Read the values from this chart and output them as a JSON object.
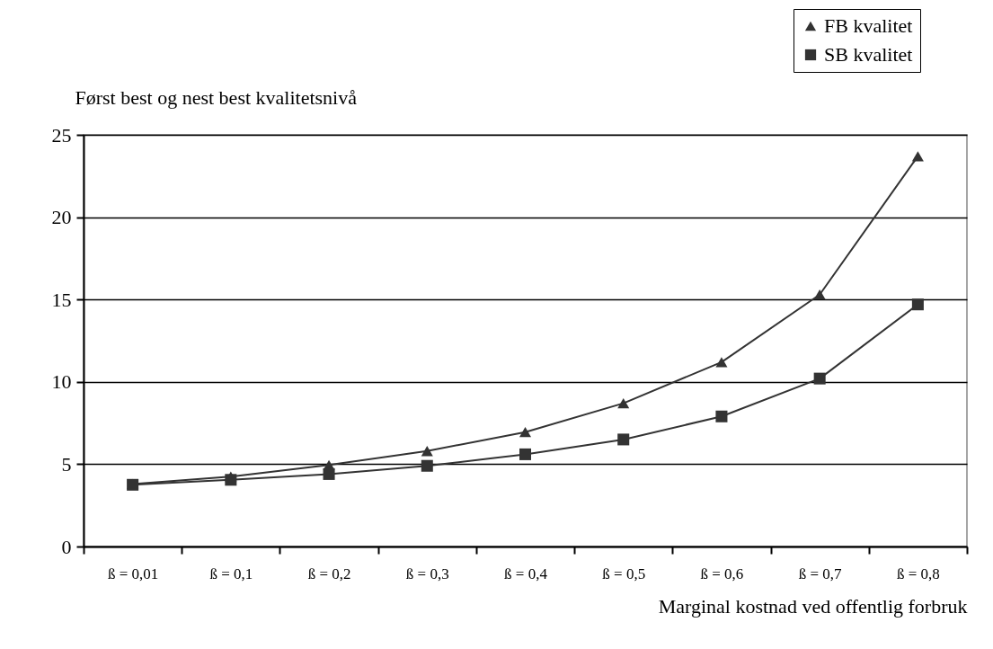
{
  "chart_data": {
    "type": "line",
    "ylabel": "Først best og nest best kvalitetsnivå",
    "xlabel": "Marginal kostnad ved offentlig forbruk",
    "categories": [
      "ß = 0,01",
      "ß = 0,1",
      "ß = 0,2",
      "ß = 0,3",
      "ß = 0,4",
      "ß = 0,5",
      "ß = 0,6",
      "ß = 0,7",
      "ß = 0,8"
    ],
    "series": [
      {
        "name": "FB kvalitet",
        "color": "#333333",
        "marker": "triangle",
        "values": [
          3.8,
          4.25,
          4.95,
          5.8,
          6.95,
          8.7,
          11.2,
          15.3,
          23.7
        ]
      },
      {
        "name": "SB kvalitet",
        "color": "#333333",
        "marker": "square",
        "values": [
          3.75,
          4.05,
          4.4,
          4.9,
          5.6,
          6.5,
          7.9,
          10.2,
          14.7
        ]
      }
    ],
    "ylim": [
      0,
      25
    ],
    "yticks": [
      0,
      5,
      10,
      15,
      20,
      25
    ],
    "grid": "y",
    "legend": "top right",
    "line_style": "solid"
  }
}
